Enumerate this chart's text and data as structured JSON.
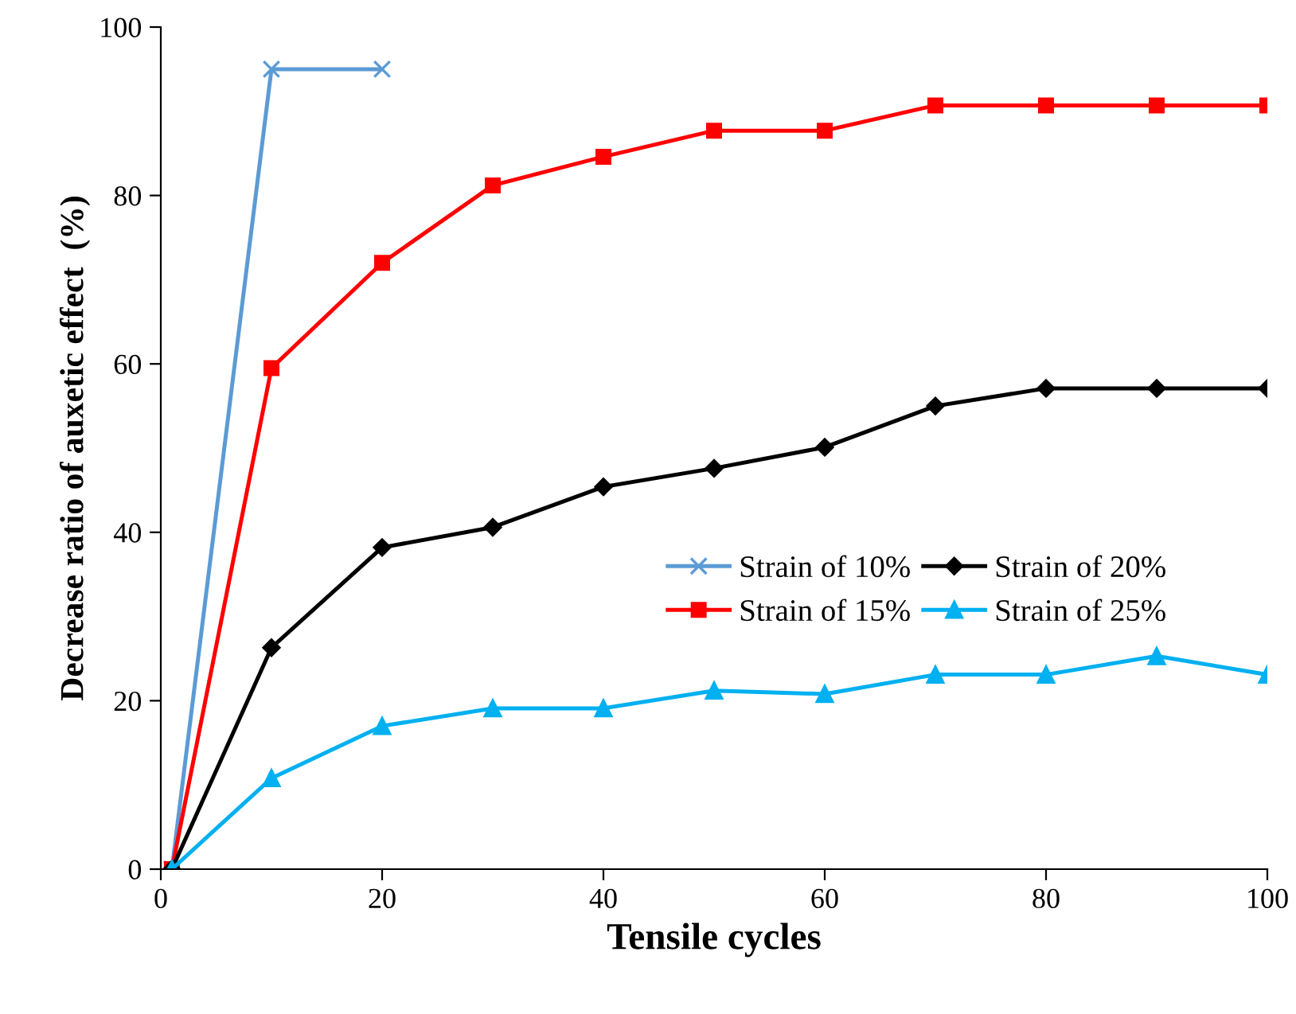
{
  "chart_data": {
    "type": "line",
    "xlabel": "Tensile cycles",
    "ylabel": "Decrease ratio of auxetic effect  (%)",
    "xlim": [
      0,
      100
    ],
    "xticks": [
      0,
      20,
      40,
      60,
      80,
      100
    ],
    "ylim": [
      0,
      100
    ],
    "yticks": [
      0,
      20,
      40,
      60,
      80,
      100
    ],
    "grid": false,
    "legend": "center right",
    "line_style": "solid",
    "series": [
      {
        "name": "Strain of 10%",
        "color": "#5b9bd5",
        "marker": "cross",
        "x": [
          1,
          10,
          20
        ],
        "values": [
          0,
          95,
          95
        ]
      },
      {
        "name": "Strain of 15%",
        "color": "#ff0000",
        "marker": "square",
        "x": [
          1,
          10,
          20,
          30,
          40,
          50,
          60,
          70,
          80,
          90,
          100
        ],
        "values": [
          0,
          59.5,
          72,
          81.2,
          84.6,
          87.7,
          87.7,
          90.7,
          90.7,
          90.7,
          90.7
        ]
      },
      {
        "name": "Strain of 20%",
        "color": "#000000",
        "marker": "diamond",
        "x": [
          1,
          10,
          20,
          30,
          40,
          50,
          60,
          70,
          80,
          90,
          100
        ],
        "values": [
          0,
          26.3,
          38.2,
          40.6,
          45.4,
          47.6,
          50.1,
          55.0,
          57.1,
          57.1,
          57.1
        ]
      },
      {
        "name": "Strain of 25%",
        "color": "#00b0f0",
        "marker": "triangle",
        "x": [
          1,
          10,
          20,
          30,
          40,
          50,
          60,
          70,
          80,
          90,
          100
        ],
        "values": [
          0,
          10.8,
          17.0,
          19.1,
          19.1,
          21.2,
          20.8,
          23.1,
          23.1,
          25.3,
          23.1
        ]
      }
    ]
  }
}
